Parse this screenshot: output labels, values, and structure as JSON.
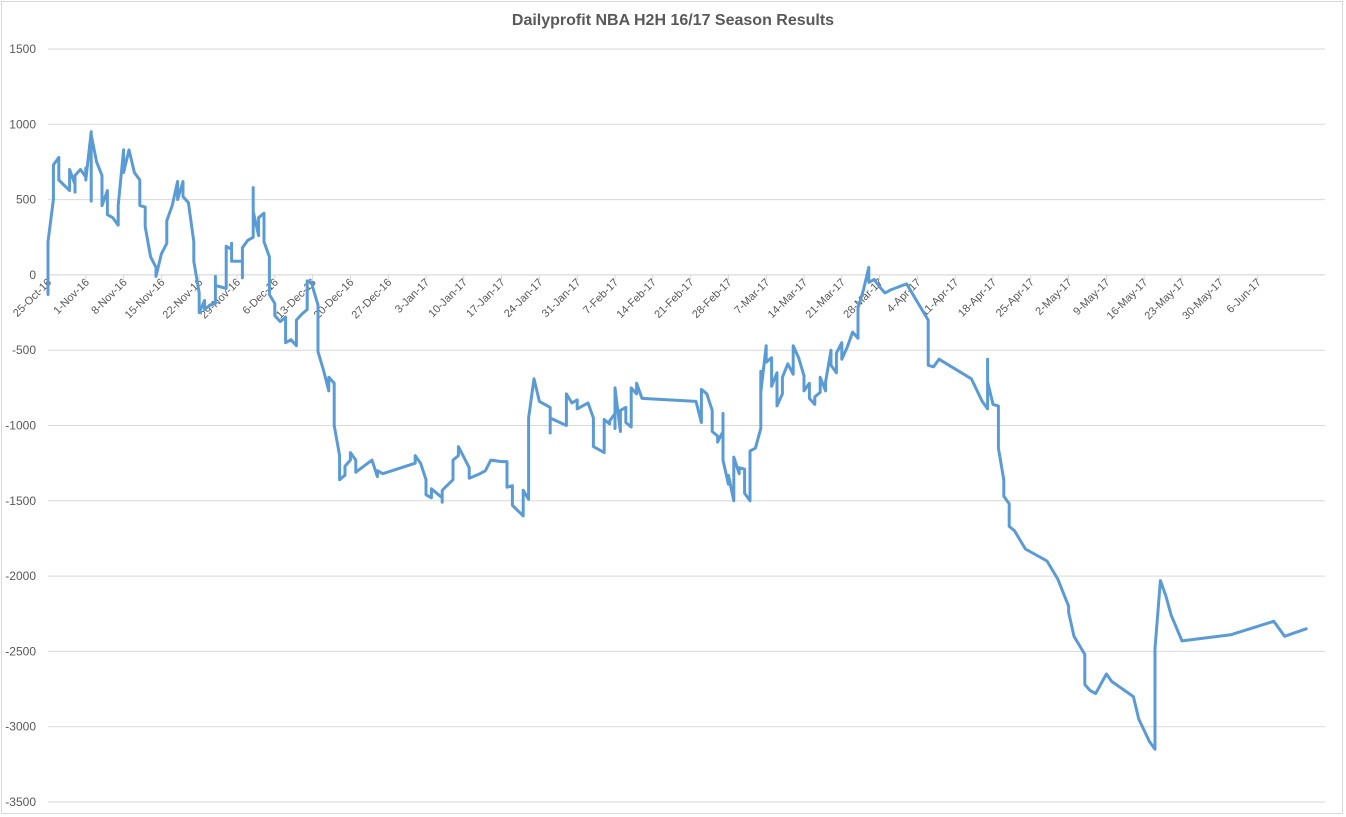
{
  "chart_data": {
    "type": "line",
    "title": "Dailyprofit NBA H2H 16/17 Season Results",
    "xlabel": "",
    "ylabel": "",
    "ylim": [
      -3500,
      1500
    ],
    "yticks": [
      1500,
      1000,
      500,
      0,
      -500,
      -1000,
      -1500,
      -2000,
      -2500,
      -3000,
      -3500
    ],
    "xlim": [
      "2016-10-25",
      "2017-06-15"
    ],
    "xticks": [
      "25-Oct-16",
      "1-Nov-16",
      "8-Nov-16",
      "15-Nov-16",
      "22-Nov-16",
      "29-Nov-16",
      "6-Dec-16",
      "13-Dec-16",
      "20-Dec-16",
      "27-Dec-16",
      "3-Jan-17",
      "10-Jan-17",
      "17-Jan-17",
      "24-Jan-17",
      "31-Jan-17",
      "7-Feb-17",
      "14-Feb-17",
      "21-Feb-17",
      "28-Feb-17",
      "7-Mar-17",
      "14-Mar-17",
      "21-Mar-17",
      "28-Mar-17",
      "4-Apr-17",
      "11-Apr-17",
      "18-Apr-17",
      "25-Apr-17",
      "2-May-17",
      "9-May-17",
      "16-May-17",
      "23-May-17",
      "30-May-17",
      "6-Jun-17"
    ],
    "grid": true,
    "legend": "none",
    "series": [
      {
        "color": "#5b9bd5",
        "points": [
          [
            "2016-10-25",
            -130
          ],
          [
            "2016-10-25",
            220
          ],
          [
            "2016-10-26",
            500
          ],
          [
            "2016-10-26",
            730
          ],
          [
            "2016-10-27",
            780
          ],
          [
            "2016-10-27",
            630
          ],
          [
            "2016-10-29",
            560
          ],
          [
            "2016-10-29",
            700
          ],
          [
            "2016-10-30",
            600
          ],
          [
            "2016-10-30",
            550
          ],
          [
            "2016-10-30",
            660
          ],
          [
            "2016-10-31",
            700
          ],
          [
            "2016-11-01",
            650
          ],
          [
            "2016-11-01",
            710
          ],
          [
            "2016-11-01",
            630
          ],
          [
            "2016-11-02",
            950
          ],
          [
            "2016-11-02",
            490
          ],
          [
            "2016-11-02",
            930
          ],
          [
            "2016-11-03",
            750
          ],
          [
            "2016-11-04",
            660
          ],
          [
            "2016-11-04",
            460
          ],
          [
            "2016-11-05",
            560
          ],
          [
            "2016-11-05",
            400
          ],
          [
            "2016-11-06",
            380
          ],
          [
            "2016-11-07",
            330
          ],
          [
            "2016-11-07",
            460
          ],
          [
            "2016-11-08",
            830
          ],
          [
            "2016-11-08",
            680
          ],
          [
            "2016-11-09",
            830
          ],
          [
            "2016-11-10",
            680
          ],
          [
            "2016-11-11",
            630
          ],
          [
            "2016-11-11",
            460
          ],
          [
            "2016-11-12",
            450
          ],
          [
            "2016-11-12",
            320
          ],
          [
            "2016-11-13",
            120
          ],
          [
            "2016-11-14",
            50
          ],
          [
            "2016-11-14",
            -10
          ],
          [
            "2016-11-15",
            140
          ],
          [
            "2016-11-16",
            210
          ],
          [
            "2016-11-16",
            360
          ],
          [
            "2016-11-17",
            460
          ],
          [
            "2016-11-18",
            620
          ],
          [
            "2016-11-18",
            500
          ],
          [
            "2016-11-19",
            620
          ],
          [
            "2016-11-19",
            520
          ],
          [
            "2016-11-20",
            480
          ],
          [
            "2016-11-21",
            220
          ],
          [
            "2016-11-21",
            90
          ],
          [
            "2016-11-22",
            -120
          ],
          [
            "2016-11-22",
            -250
          ],
          [
            "2016-11-23",
            -170
          ],
          [
            "2016-11-23",
            -230
          ],
          [
            "2016-11-24",
            -200
          ],
          [
            "2016-11-25",
            -190
          ],
          [
            "2016-11-25",
            -10
          ],
          [
            "2016-11-25",
            -70
          ],
          [
            "2016-11-27",
            -90
          ],
          [
            "2016-11-27",
            190
          ],
          [
            "2016-11-28",
            170
          ],
          [
            "2016-11-28",
            210
          ],
          [
            "2016-11-28",
            90
          ],
          [
            "2016-11-30",
            90
          ],
          [
            "2016-11-30",
            -20
          ],
          [
            "2016-11-30",
            180
          ],
          [
            "2016-12-01",
            230
          ],
          [
            "2016-12-02",
            250
          ],
          [
            "2016-12-02",
            360
          ],
          [
            "2016-12-02",
            580
          ],
          [
            "2016-12-02",
            420
          ],
          [
            "2016-12-03",
            260
          ],
          [
            "2016-12-03",
            380
          ],
          [
            "2016-12-04",
            410
          ],
          [
            "2016-12-04",
            220
          ],
          [
            "2016-12-05",
            120
          ],
          [
            "2016-12-05",
            -130
          ],
          [
            "2016-12-06",
            -190
          ],
          [
            "2016-12-06",
            -270
          ],
          [
            "2016-12-07",
            -310
          ],
          [
            "2016-12-08",
            -280
          ],
          [
            "2016-12-08",
            -370
          ],
          [
            "2016-12-08",
            -450
          ],
          [
            "2016-12-09",
            -430
          ],
          [
            "2016-12-10",
            -470
          ],
          [
            "2016-12-10",
            -300
          ],
          [
            "2016-12-11",
            -260
          ],
          [
            "2016-12-12",
            -230
          ],
          [
            "2016-12-12",
            -40
          ],
          [
            "2016-12-13",
            -50
          ],
          [
            "2016-12-13",
            -80
          ],
          [
            "2016-12-14",
            -200
          ],
          [
            "2016-12-14",
            -510
          ],
          [
            "2016-12-15",
            -630
          ],
          [
            "2016-12-16",
            -770
          ],
          [
            "2016-12-16",
            -680
          ],
          [
            "2016-12-17",
            -720
          ],
          [
            "2016-12-17",
            -1000
          ],
          [
            "2016-12-18",
            -1200
          ],
          [
            "2016-12-18",
            -1360
          ],
          [
            "2016-12-19",
            -1330
          ],
          [
            "2016-12-19",
            -1270
          ],
          [
            "2016-12-20",
            -1230
          ],
          [
            "2016-12-20",
            -1180
          ],
          [
            "2016-12-21",
            -1230
          ],
          [
            "2016-12-21",
            -1310
          ],
          [
            "2016-12-24",
            -1230
          ],
          [
            "2016-12-25",
            -1340
          ],
          [
            "2016-12-25",
            -1300
          ],
          [
            "2016-12-26",
            -1320
          ],
          [
            "2017-01-01",
            -1250
          ],
          [
            "2017-01-01",
            -1200
          ],
          [
            "2017-01-02",
            -1250
          ],
          [
            "2017-01-03",
            -1360
          ],
          [
            "2017-01-03",
            -1460
          ],
          [
            "2017-01-04",
            -1480
          ],
          [
            "2017-01-04",
            -1420
          ],
          [
            "2017-01-06",
            -1480
          ],
          [
            "2017-01-06",
            -1510
          ],
          [
            "2017-01-06",
            -1430
          ],
          [
            "2017-01-08",
            -1360
          ],
          [
            "2017-01-08",
            -1230
          ],
          [
            "2017-01-09",
            -1200
          ],
          [
            "2017-01-09",
            -1140
          ],
          [
            "2017-01-11",
            -1280
          ],
          [
            "2017-01-11",
            -1350
          ],
          [
            "2017-01-13",
            -1320
          ],
          [
            "2017-01-14",
            -1300
          ],
          [
            "2017-01-15",
            -1230
          ],
          [
            "2017-01-17",
            -1240
          ],
          [
            "2017-01-18",
            -1240
          ],
          [
            "2017-01-18",
            -1410
          ],
          [
            "2017-01-19",
            -1400
          ],
          [
            "2017-01-19",
            -1530
          ],
          [
            "2017-01-21",
            -1600
          ],
          [
            "2017-01-21",
            -1430
          ],
          [
            "2017-01-22",
            -1490
          ],
          [
            "2017-01-22",
            -950
          ],
          [
            "2017-01-23",
            -690
          ],
          [
            "2017-01-24",
            -840
          ],
          [
            "2017-01-26",
            -880
          ],
          [
            "2017-01-26",
            -1050
          ],
          [
            "2017-01-26",
            -950
          ],
          [
            "2017-01-29",
            -1000
          ],
          [
            "2017-01-29",
            -790
          ],
          [
            "2017-01-30",
            -850
          ],
          [
            "2017-01-31",
            -830
          ],
          [
            "2017-01-31",
            -890
          ],
          [
            "2017-02-02",
            -850
          ],
          [
            "2017-02-03",
            -950
          ],
          [
            "2017-02-03",
            -1140
          ],
          [
            "2017-02-05",
            -1180
          ],
          [
            "2017-02-05",
            -960
          ],
          [
            "2017-02-06",
            -990
          ],
          [
            "2017-02-06",
            -970
          ],
          [
            "2017-02-07",
            -920
          ],
          [
            "2017-02-07",
            -1020
          ],
          [
            "2017-02-07",
            -750
          ],
          [
            "2017-02-08",
            -1040
          ],
          [
            "2017-02-08",
            -900
          ],
          [
            "2017-02-09",
            -880
          ],
          [
            "2017-02-09",
            -980
          ],
          [
            "2017-02-10",
            -1010
          ],
          [
            "2017-02-10",
            -750
          ],
          [
            "2017-02-11",
            -790
          ],
          [
            "2017-02-11",
            -720
          ],
          [
            "2017-02-12",
            -820
          ],
          [
            "2017-02-22",
            -840
          ],
          [
            "2017-02-23",
            -980
          ],
          [
            "2017-02-23",
            -760
          ],
          [
            "2017-02-24",
            -790
          ],
          [
            "2017-02-25",
            -900
          ],
          [
            "2017-02-25",
            -1040
          ],
          [
            "2017-02-26",
            -1070
          ],
          [
            "2017-02-26",
            -1110
          ],
          [
            "2017-02-27",
            -1040
          ],
          [
            "2017-02-27",
            -920
          ],
          [
            "2017-02-27",
            -1230
          ],
          [
            "2017-02-28",
            -1390
          ],
          [
            "2017-02-28",
            -1330
          ],
          [
            "2017-03-01",
            -1500
          ],
          [
            "2017-03-01",
            -1210
          ],
          [
            "2017-03-02",
            -1320
          ],
          [
            "2017-03-02",
            -1280
          ],
          [
            "2017-03-03",
            -1290
          ],
          [
            "2017-03-03",
            -1450
          ],
          [
            "2017-03-04",
            -1500
          ],
          [
            "2017-03-04",
            -1170
          ],
          [
            "2017-03-05",
            -1150
          ],
          [
            "2017-03-06",
            -1020
          ],
          [
            "2017-03-06",
            -640
          ],
          [
            "2017-03-06",
            -780
          ],
          [
            "2017-03-07",
            -470
          ],
          [
            "2017-03-07",
            -580
          ],
          [
            "2017-03-08",
            -550
          ],
          [
            "2017-03-08",
            -740
          ],
          [
            "2017-03-09",
            -650
          ],
          [
            "2017-03-09",
            -870
          ],
          [
            "2017-03-10",
            -790
          ],
          [
            "2017-03-10",
            -680
          ],
          [
            "2017-03-11",
            -590
          ],
          [
            "2017-03-12",
            -660
          ],
          [
            "2017-03-12",
            -470
          ],
          [
            "2017-03-13",
            -550
          ],
          [
            "2017-03-14",
            -670
          ],
          [
            "2017-03-14",
            -770
          ],
          [
            "2017-03-15",
            -720
          ],
          [
            "2017-03-15",
            -820
          ],
          [
            "2017-03-16",
            -860
          ],
          [
            "2017-03-16",
            -810
          ],
          [
            "2017-03-17",
            -780
          ],
          [
            "2017-03-17",
            -680
          ],
          [
            "2017-03-18",
            -770
          ],
          [
            "2017-03-18",
            -710
          ],
          [
            "2017-03-19",
            -500
          ],
          [
            "2017-03-19",
            -600
          ],
          [
            "2017-03-20",
            -650
          ],
          [
            "2017-03-20",
            -520
          ],
          [
            "2017-03-21",
            -450
          ],
          [
            "2017-03-21",
            -560
          ],
          [
            "2017-03-22",
            -480
          ],
          [
            "2017-03-23",
            -380
          ],
          [
            "2017-03-24",
            -420
          ],
          [
            "2017-03-24",
            -220
          ],
          [
            "2017-03-25",
            -100
          ],
          [
            "2017-03-26",
            50
          ],
          [
            "2017-03-26",
            -50
          ],
          [
            "2017-03-27",
            -30
          ],
          [
            "2017-03-28",
            -80
          ],
          [
            "2017-03-29",
            -120
          ],
          [
            "2017-03-30",
            -100
          ],
          [
            "2017-04-02",
            -60
          ],
          [
            "2017-04-06",
            -300
          ],
          [
            "2017-04-06",
            -600
          ],
          [
            "2017-04-07",
            -610
          ],
          [
            "2017-04-08",
            -560
          ],
          [
            "2017-04-14",
            -690
          ],
          [
            "2017-04-16",
            -840
          ],
          [
            "2017-04-17",
            -890
          ],
          [
            "2017-04-17",
            -560
          ],
          [
            "2017-04-17",
            -710
          ],
          [
            "2017-04-18",
            -860
          ],
          [
            "2017-04-19",
            -870
          ],
          [
            "2017-04-19",
            -1150
          ],
          [
            "2017-04-20",
            -1360
          ],
          [
            "2017-04-20",
            -1470
          ],
          [
            "2017-04-21",
            -1520
          ],
          [
            "2017-04-21",
            -1670
          ],
          [
            "2017-04-22",
            -1700
          ],
          [
            "2017-04-24",
            -1820
          ],
          [
            "2017-04-28",
            -1900
          ],
          [
            "2017-04-30",
            -2020
          ],
          [
            "2017-05-02",
            -2200
          ],
          [
            "2017-05-02",
            -2240
          ],
          [
            "2017-05-03",
            -2400
          ],
          [
            "2017-05-05",
            -2520
          ],
          [
            "2017-05-05",
            -2720
          ],
          [
            "2017-05-06",
            -2760
          ],
          [
            "2017-05-07",
            -2780
          ],
          [
            "2017-05-09",
            -2650
          ],
          [
            "2017-05-10",
            -2700
          ],
          [
            "2017-05-14",
            -2800
          ],
          [
            "2017-05-15",
            -2950
          ],
          [
            "2017-05-17",
            -3100
          ],
          [
            "2017-05-18",
            -3150
          ],
          [
            "2017-05-18",
            -2480
          ],
          [
            "2017-05-19",
            -2030
          ],
          [
            "2017-05-20",
            -2130
          ],
          [
            "2017-05-21",
            -2260
          ],
          [
            "2017-05-23",
            -2430
          ],
          [
            "2017-06-01",
            -2390
          ],
          [
            "2017-06-09",
            -2300
          ],
          [
            "2017-06-11",
            -2400
          ],
          [
            "2017-06-15",
            -2350
          ]
        ]
      }
    ]
  }
}
